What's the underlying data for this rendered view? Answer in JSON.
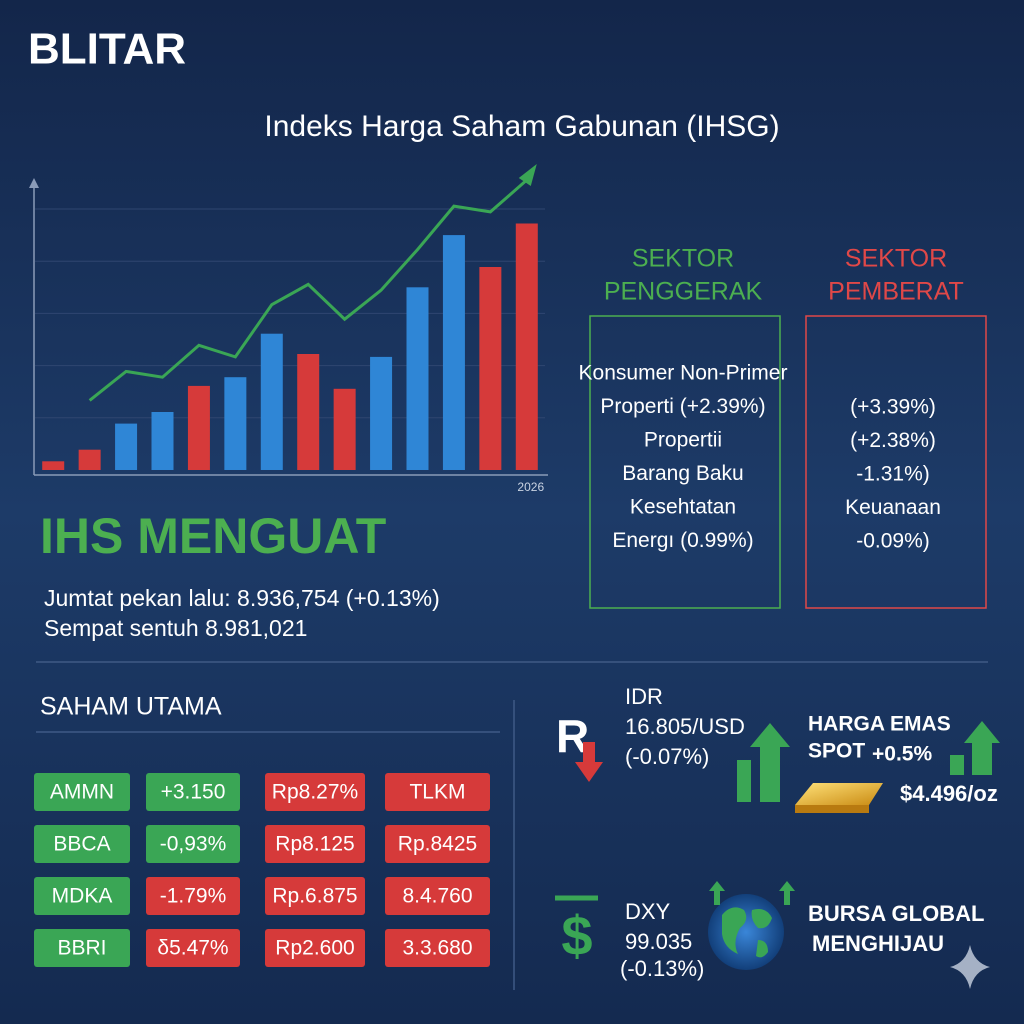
{
  "header": {
    "title": "BLITAR"
  },
  "chart_data": {
    "type": "bar",
    "title": "Indeks Harga Saham Gabunan (IHSG)",
    "categories": [
      null,
      null,
      null,
      null,
      null,
      null,
      null,
      null,
      null,
      null,
      null,
      null,
      null,
      "2026"
    ],
    "values": [
      3,
      7,
      16,
      20,
      29,
      32,
      47,
      40,
      28,
      39,
      63,
      81,
      70,
      85
    ],
    "bar_colors": [
      "#d63a3a",
      "#d63a3a",
      "#2f86d6",
      "#2f86d6",
      "#d63a3a",
      "#2f86d6",
      "#2f86d6",
      "#d63a3a",
      "#d63a3a",
      "#2f86d6",
      "#2f86d6",
      "#2f86d6",
      "#d63a3a",
      "#d63a3a"
    ],
    "line": {
      "color": "#3aa655",
      "values": [
        null,
        24,
        34,
        32,
        43,
        39,
        57,
        64,
        52,
        62,
        76,
        91,
        89,
        100
      ]
    },
    "ylim": [
      0,
      100
    ]
  },
  "headline": {
    "title": "IHS MENGUAT",
    "lines": [
      "Jumtat pekan lalu: 8.936,754 (+0.13%)",
      "Sempat sentuh 8.981,021"
    ]
  },
  "sectors": {
    "gainers": {
      "title": [
        "SEKTOR",
        "PENGGERAK"
      ],
      "color": "#4caf50",
      "items": [
        "Konsumer Non-Primer",
        "Properti (+2.39%)",
        "Propertii",
        "Barang Baku",
        "Kesehtatan",
        "Energı (0.99%)"
      ]
    },
    "losers": {
      "title": [
        "SEKTOR",
        "PEMBERAT"
      ],
      "color": "#e04848",
      "items": [
        "(+3.39%)",
        "(+2.38%)",
        "-1.31%)",
        "Keuanaan",
        "-0.09%)"
      ]
    }
  },
  "table": {
    "title": "SAHAM UTAMA",
    "rows": [
      [
        "AMMN",
        "+3.150",
        "Rp8.27%",
        "TLKM"
      ],
      [
        "BBCA",
        "-0,93%",
        "Rp8.125",
        "Rp.8425"
      ],
      [
        "MDKA",
        "-1.79%",
        "Rp.6.875",
        "8.4.760"
      ],
      [
        "BBRI",
        "δ5.47%",
        "Rp2.600",
        "3.3.680"
      ]
    ],
    "colors": [
      [
        "#3aa655",
        "#3aa655",
        "#d63a3a",
        "#d63a3a"
      ],
      [
        "#3aa655",
        "#3aa655",
        "#d63a3a",
        "#d63a3a"
      ],
      [
        "#3aa655",
        "#d63a3a",
        "#d63a3a",
        "#d63a3a"
      ],
      [
        "#3aa655",
        "#d63a3a",
        "#d63a3a",
        "#d63a3a"
      ]
    ]
  },
  "idr": {
    "symbol": "R",
    "label": "IDR",
    "value": "16.805/USD",
    "change": "(-0.07%)"
  },
  "gold": {
    "label": [
      "HARGA EMAS",
      "SPOT"
    ],
    "change": "+0.5%",
    "value": "$4.496/oz"
  },
  "dxy": {
    "symbol": "$",
    "label": "DXY",
    "value": "99.035",
    "change": "(-0.13%)"
  },
  "global": {
    "lines": [
      "BURSA GLOBAL",
      "MENGHIJAU"
    ]
  }
}
